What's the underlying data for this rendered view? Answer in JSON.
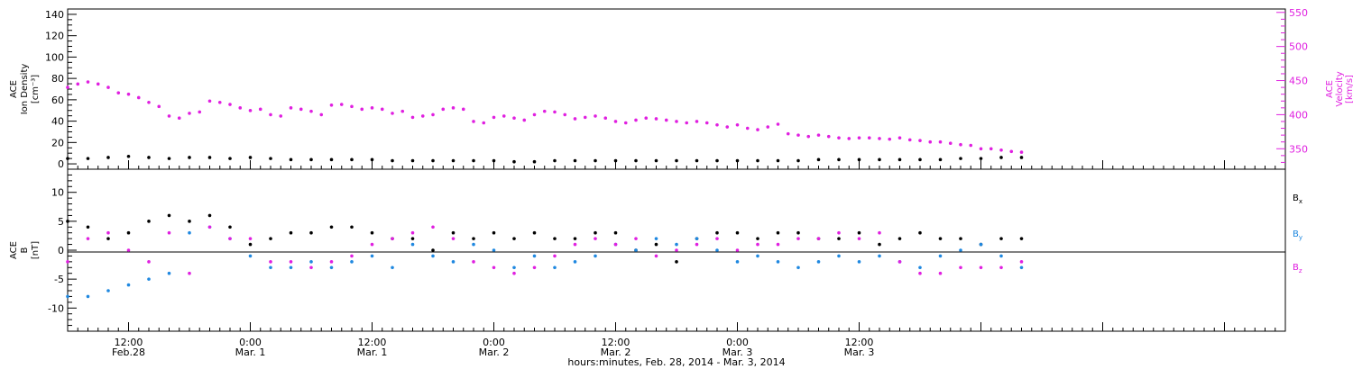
{
  "chart_data": [
    {
      "type": "scatter",
      "panel": "top",
      "ylabel_left": [
        "ACE",
        "Ion Density",
        "[cm⁻³]"
      ],
      "ylabel_right": [
        "ACE",
        "Velocity",
        "[km/s]"
      ],
      "ylim_left": [
        -5,
        145
      ],
      "ylim_right": [
        320,
        555
      ],
      "yticks_left": [
        0,
        20,
        40,
        60,
        80,
        100,
        120,
        140
      ],
      "yticks_right": [
        350,
        400,
        450,
        500,
        550
      ],
      "series": [
        {
          "name": "Ion Density",
          "axis": "left",
          "color": "#000000",
          "x": [
            0,
            2,
            4,
            6,
            8,
            10,
            12,
            14,
            16,
            18,
            20,
            22,
            24,
            26,
            28,
            30,
            32,
            34,
            36,
            38,
            40,
            42,
            44,
            46,
            48,
            50,
            52,
            54,
            56,
            58,
            60,
            62,
            64,
            66,
            68,
            70,
            72,
            74,
            76,
            78,
            80,
            82,
            84,
            86,
            88,
            90,
            92,
            94
          ],
          "y": [
            5,
            5,
            6,
            7,
            6,
            5,
            6,
            6,
            5,
            6,
            5,
            4,
            4,
            4,
            4,
            4,
            3,
            3,
            3,
            3,
            3,
            3,
            2,
            2,
            3,
            3,
            3,
            3,
            3,
            3,
            3,
            3,
            3,
            3,
            3,
            3,
            3,
            4,
            4,
            4,
            4,
            4,
            4,
            4,
            5,
            5,
            6,
            6
          ]
        },
        {
          "name": "Velocity",
          "axis": "right",
          "color": "#e020e0",
          "x": [
            0,
            1,
            2,
            3,
            4,
            5,
            6,
            7,
            8,
            9,
            10,
            11,
            12,
            13,
            14,
            15,
            16,
            17,
            18,
            19,
            20,
            21,
            22,
            23,
            24,
            25,
            26,
            27,
            28,
            29,
            30,
            31,
            32,
            33,
            34,
            35,
            36,
            37,
            38,
            39,
            40,
            41,
            42,
            43,
            44,
            45,
            46,
            47,
            48,
            49,
            50,
            51,
            52,
            53,
            54,
            55,
            56,
            57,
            58,
            59,
            60,
            61,
            62,
            63,
            64,
            65,
            66,
            67,
            68,
            69,
            70,
            71,
            72,
            73,
            74,
            75,
            76,
            77,
            78,
            79,
            80,
            81,
            82,
            83,
            84,
            85,
            86,
            87,
            88,
            89,
            90,
            91,
            92,
            93,
            94
          ],
          "y": [
            440,
            445,
            448,
            445,
            440,
            432,
            430,
            425,
            418,
            412,
            398,
            395,
            402,
            404,
            420,
            418,
            415,
            410,
            406,
            408,
            400,
            398,
            410,
            408,
            405,
            400,
            414,
            415,
            412,
            408,
            410,
            408,
            402,
            405,
            396,
            398,
            400,
            408,
            410,
            408,
            390,
            388,
            396,
            398,
            395,
            392,
            400,
            405,
            404,
            400,
            394,
            396,
            398,
            395,
            390,
            388,
            392,
            395,
            394,
            392,
            390,
            388,
            390,
            388,
            385,
            382,
            385,
            380,
            378,
            382,
            386,
            372,
            370,
            368,
            370,
            368,
            366,
            365,
            366,
            366,
            365,
            364,
            366,
            363,
            362,
            360,
            360,
            358,
            356,
            355,
            350,
            350,
            348,
            346,
            345
          ]
        }
      ]
    },
    {
      "type": "scatter",
      "panel": "bottom",
      "ylabel": [
        "ACE",
        "B",
        "[nT]"
      ],
      "ylim": [
        -14,
        14
      ],
      "yticks": [
        -10,
        -5,
        0,
        5,
        10
      ],
      "legend_placement": "right",
      "series": [
        {
          "name": "Bx",
          "color": "#000000",
          "x": [
            0,
            2,
            4,
            6,
            8,
            10,
            12,
            14,
            16,
            18,
            20,
            22,
            24,
            26,
            28,
            30,
            32,
            34,
            36,
            38,
            40,
            42,
            44,
            46,
            48,
            50,
            52,
            54,
            56,
            58,
            60,
            62,
            64,
            66,
            68,
            70,
            72,
            74,
            76,
            78,
            80,
            82,
            84,
            86,
            88,
            90,
            92,
            94
          ],
          "y": [
            5,
            4,
            2,
            3,
            5,
            6,
            5,
            6,
            4,
            1,
            2,
            3,
            3,
            4,
            4,
            3,
            2,
            2,
            0,
            3,
            2,
            3,
            2,
            3,
            2,
            2,
            3,
            3,
            0,
            1,
            -2,
            2,
            3,
            3,
            2,
            3,
            3,
            2,
            2,
            3,
            1,
            2,
            3,
            2,
            2,
            1,
            2,
            2
          ]
        },
        {
          "name": "By",
          "color": "#1f88e0",
          "x": [
            0,
            2,
            4,
            6,
            8,
            10,
            12,
            14,
            16,
            18,
            20,
            22,
            24,
            26,
            28,
            30,
            32,
            34,
            36,
            38,
            40,
            42,
            44,
            46,
            48,
            50,
            52,
            54,
            56,
            58,
            60,
            62,
            64,
            66,
            68,
            70,
            72,
            74,
            76,
            78,
            80,
            82,
            84,
            86,
            88,
            90,
            92,
            94
          ],
          "y": [
            -8,
            -8,
            -7,
            -6,
            -5,
            -4,
            3,
            4,
            2,
            -1,
            -3,
            -3,
            -2,
            -3,
            -2,
            -1,
            -3,
            1,
            -1,
            -2,
            1,
            0,
            -3,
            -1,
            -3,
            -2,
            -1,
            1,
            0,
            2,
            1,
            2,
            0,
            -2,
            -1,
            -2,
            -3,
            -2,
            -1,
            -2,
            -1,
            -2,
            -3,
            -1,
            0,
            1,
            -1,
            -3
          ]
        },
        {
          "name": "Bz",
          "color": "#e020e0",
          "x": [
            0,
            2,
            4,
            6,
            8,
            10,
            12,
            14,
            16,
            18,
            20,
            22,
            24,
            26,
            28,
            30,
            32,
            34,
            36,
            38,
            40,
            42,
            44,
            46,
            48,
            50,
            52,
            54,
            56,
            58,
            60,
            62,
            64,
            66,
            68,
            70,
            72,
            74,
            76,
            78,
            80,
            82,
            84,
            86,
            88,
            90,
            92,
            94
          ],
          "y": [
            -2,
            2,
            3,
            0,
            -2,
            3,
            -4,
            4,
            2,
            2,
            -2,
            -2,
            -3,
            -2,
            -1,
            1,
            2,
            3,
            4,
            2,
            -2,
            -3,
            -4,
            -3,
            -1,
            1,
            2,
            1,
            2,
            -1,
            0,
            1,
            2,
            0,
            1,
            1,
            2,
            2,
            3,
            2,
            3,
            -2,
            -4,
            -4,
            -3,
            -3,
            -3,
            -2
          ]
        }
      ],
      "legend": [
        {
          "main": "B",
          "sub": "x",
          "color": "#000000"
        },
        {
          "main": "B",
          "sub": "y",
          "color": "#1f88e0"
        },
        {
          "main": "B",
          "sub": "z",
          "color": "#e020e0"
        }
      ]
    }
  ],
  "xaxis": {
    "xlim": [
      0,
      120
    ],
    "unit": "hours",
    "major_ticks": [
      {
        "x": 6,
        "time": "12:00",
        "date": "Feb.28"
      },
      {
        "x": 18,
        "time": "0:00",
        "date": "Mar. 1"
      },
      {
        "x": 30,
        "time": "12:00",
        "date": "Mar. 1"
      },
      {
        "x": 42,
        "time": "0:00",
        "date": "Mar. 2"
      },
      {
        "x": 54,
        "time": "12:00",
        "date": "Mar. 2"
      },
      {
        "x": 66,
        "time": "0:00",
        "date": "Mar. 3"
      },
      {
        "x": 78,
        "time": "12:00",
        "date": "Mar. 3"
      }
    ],
    "title": "hours:minutes, Feb. 28, 2014 - Mar.  3, 2014"
  }
}
